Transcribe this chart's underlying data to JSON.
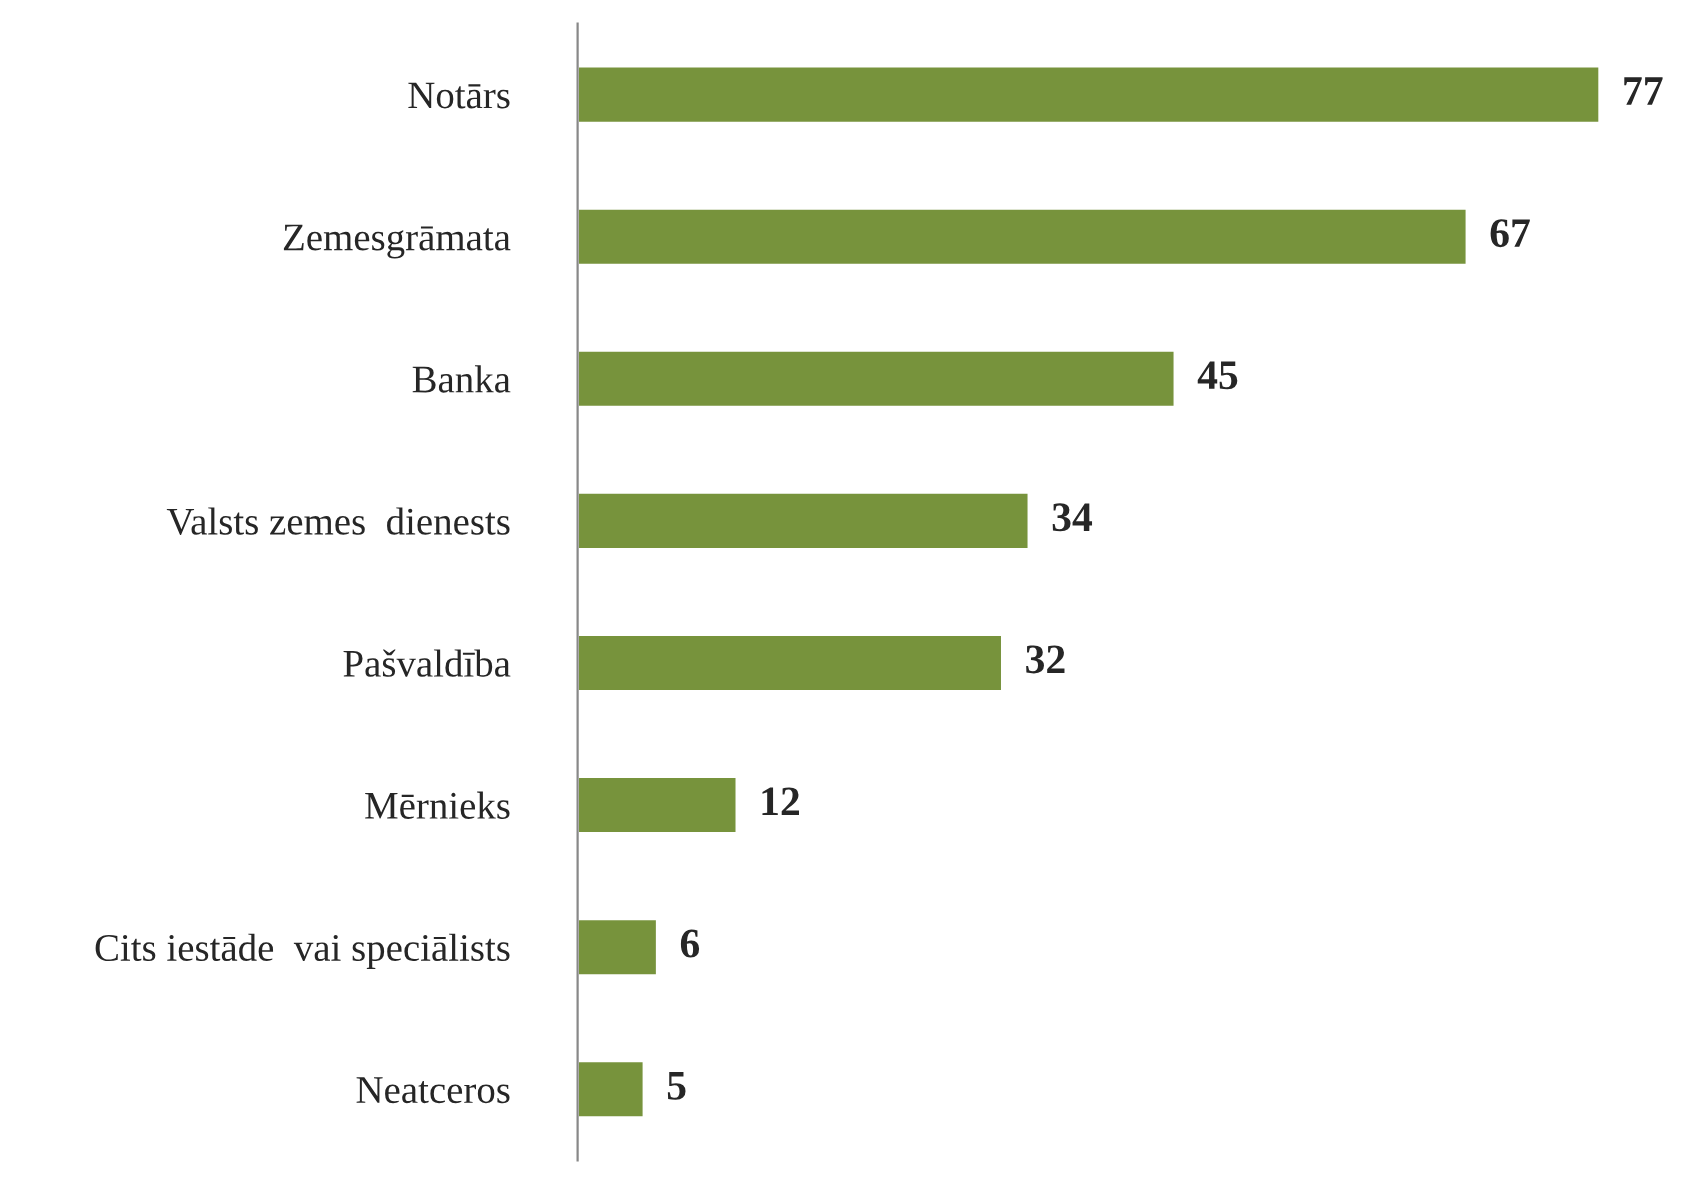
{
  "chart_data": {
    "type": "bar",
    "orientation": "horizontal",
    "data_labels": true,
    "categories": [
      "Notārs",
      "Zemesgrāmata",
      "Banka",
      "Valsts zemes  dienests",
      "Pašvaldība",
      "Mērnieks",
      "Cits iestāde  vai speciālists",
      "Neatceros"
    ],
    "values": [
      77,
      67,
      45,
      34,
      32,
      12,
      6,
      5
    ],
    "color": "#77933c"
  }
}
